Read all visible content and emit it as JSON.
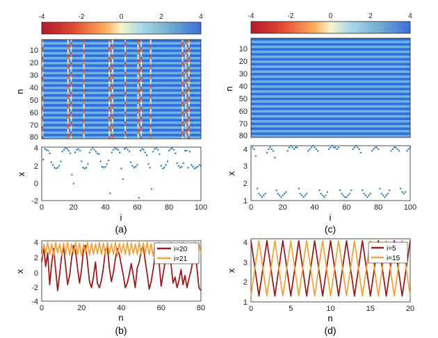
{
  "figure": {
    "colorbar_ticks": [
      "-4",
      "-2",
      "0",
      "2",
      "4"
    ],
    "colorbar_range": [
      -4,
      4
    ],
    "colors": {
      "dark_red": "#9b1b1b",
      "orange": "#f2a33a",
      "dots": "#1f77b4",
      "axis": "#222222"
    },
    "panels": [
      {
        "id": "a",
        "label": "(a)"
      },
      {
        "id": "b",
        "label": "(b)"
      },
      {
        "id": "c",
        "label": "(c)"
      },
      {
        "id": "d",
        "label": "(d)"
      }
    ]
  },
  "chart_data": [
    {
      "panel": "a-heatmap",
      "type": "heatmap",
      "xlabel": "",
      "ylabel": "n",
      "ylim": [
        1,
        80
      ],
      "xlim": [
        1,
        100
      ],
      "yticks": [
        "10",
        "20",
        "30",
        "40",
        "50",
        "60",
        "70",
        "80"
      ],
      "description_values": "alternating rows ~ +3.8 / +1.8 with intermittent columns dipping to negative values",
      "special_columns": [
        1,
        17,
        19,
        27,
        43,
        45,
        53,
        61,
        63,
        69,
        89,
        91,
        93
      ]
    },
    {
      "panel": "a-scatter",
      "type": "scatter",
      "xlabel": "i",
      "ylabel": "x",
      "xlim": [
        0,
        100
      ],
      "ylim": [
        -2,
        4
      ],
      "xticks": [
        "0",
        "20",
        "40",
        "60",
        "80",
        "100"
      ],
      "yticks": [
        "-2",
        "0",
        "2",
        "4"
      ],
      "x": [
        1,
        2,
        3,
        4,
        5,
        6,
        7,
        8,
        9,
        10,
        11,
        12,
        13,
        14,
        15,
        16,
        17,
        18,
        19,
        20,
        21,
        22,
        23,
        24,
        25,
        26,
        27,
        28,
        29,
        30,
        31,
        32,
        33,
        34,
        35,
        36,
        37,
        38,
        39,
        40,
        41,
        42,
        43,
        44,
        45,
        46,
        47,
        48,
        49,
        50,
        51,
        52,
        53,
        54,
        55,
        56,
        57,
        58,
        59,
        60,
        61,
        62,
        63,
        64,
        65,
        66,
        67,
        68,
        69,
        70,
        71,
        72,
        73,
        74,
        75,
        76,
        77,
        78,
        79,
        80,
        81,
        82,
        83,
        84,
        85,
        86,
        87,
        88,
        89,
        90,
        91,
        92,
        93,
        94,
        95,
        96,
        97,
        98,
        99,
        100
      ],
      "y": [
        2.6,
        3.8,
        3.7,
        3.6,
        3.3,
        2.3,
        2.0,
        1.7,
        1.6,
        1.7,
        1.9,
        2.4,
        3.5,
        3.7,
        3.9,
        3.8,
        3.6,
        3.3,
        0.9,
        -0.1,
        3.4,
        3.7,
        3.8,
        3.6,
        2.4,
        1.7,
        1.6,
        1.7,
        2.1,
        3.4,
        3.7,
        3.9,
        3.7,
        3.5,
        3.3,
        3.2,
        2.4,
        1.8,
        1.7,
        1.8,
        2.1,
        2.5,
        -1.2,
        3.4,
        3.7,
        3.9,
        3.8,
        3.7,
        3.4,
        1.6,
        0.4,
        3.8,
        3.9,
        3.7,
        3.5,
        2.3,
        1.9,
        1.7,
        1.8,
        2.0,
        -1.7,
        3.6,
        3.8,
        3.7,
        3.4,
        3.1,
        2.1,
        1.7,
        -0.7,
        3.5,
        3.8,
        3.9,
        3.7,
        3.2,
        1.9,
        1.6,
        1.7,
        2.0,
        2.4,
        3.6,
        3.8,
        3.9,
        3.7,
        3.3,
        2.2,
        1.9,
        1.7,
        1.8,
        2.2,
        3.6,
        3.6,
        1.7,
        3.5,
        2.0,
        1.8,
        1.6,
        1.7,
        1.8,
        2.0,
        1.9
      ]
    },
    {
      "panel": "b",
      "type": "line",
      "xlabel": "n",
      "ylabel": "x",
      "xlim": [
        0,
        80
      ],
      "ylim": [
        -4,
        4
      ],
      "xticks": [
        "0",
        "20",
        "40",
        "60",
        "80"
      ],
      "yticks": [
        "-4",
        "-2",
        "0",
        "2",
        "4"
      ],
      "legend_position": "top-right",
      "series": [
        {
          "name": "i=20",
          "color": "#9b1b1b",
          "values": [
            1.2,
            3.2,
            0.6,
            2.4,
            -1.8,
            1.0,
            3.0,
            0.2,
            -2.6,
            -0.4,
            2.0,
            3.2,
            0.8,
            -1.8,
            -0.6,
            1.6,
            3.4,
            2.6,
            0.4,
            -1.6,
            0.2,
            2.8,
            3.4,
            1.2,
            -1.4,
            -2.2,
            -0.8,
            1.2,
            -1.6,
            -2.2,
            -1.2,
            0.4,
            2.8,
            3.2,
            0.4,
            -1.4,
            -0.2,
            1.6,
            3.0,
            2.2,
            0.8,
            -0.6,
            -2.2,
            -1.6,
            -0.4,
            1.0,
            -0.6,
            -2.2,
            0.4,
            1.2,
            2.8,
            3.4,
            1.4,
            -0.4,
            -2.4,
            -1.4,
            0.2,
            2.2,
            3.4,
            1.0,
            -2.0,
            -0.4,
            1.2,
            2.8,
            3.2,
            0.8,
            -1.6,
            -0.8,
            -2.2,
            -1.2,
            0.2,
            -1.8,
            -0.6,
            -2.2,
            -1.0,
            0.0,
            1.4,
            3.0,
            0.4,
            -2.2,
            -2.6
          ]
        },
        {
          "name": "i=21",
          "color": "#f2a33a",
          "values": [
            1.8,
            3.6,
            2.4,
            3.8,
            2.2,
            3.6,
            2.0,
            3.8,
            2.4,
            3.6,
            2.1,
            3.7,
            2.3,
            3.8,
            2.1,
            3.6,
            2.3,
            3.8,
            2.2,
            3.7,
            2.0,
            3.6,
            2.4,
            3.8,
            2.1,
            3.7,
            2.2,
            3.6,
            2.3,
            3.8,
            2.2,
            3.7,
            2.1,
            3.8,
            2.3,
            3.6,
            2.2,
            3.8,
            2.0,
            3.7,
            2.4,
            3.6,
            2.2,
            3.8,
            2.1,
            3.7,
            2.3,
            3.6,
            2.2,
            3.8,
            2.1,
            3.7,
            2.3,
            3.8,
            2.2,
            3.6,
            2.0,
            3.7,
            2.4,
            3.8,
            2.1,
            3.6,
            2.3,
            3.7,
            2.2,
            3.8,
            2.1,
            3.6,
            2.3,
            3.7,
            2.2,
            3.8,
            2.0,
            3.6,
            2.4,
            3.7,
            2.1,
            3.8,
            2.2,
            3.6,
            2.4
          ]
        }
      ]
    },
    {
      "panel": "c-heatmap",
      "type": "heatmap",
      "xlabel": "",
      "ylabel": "n",
      "ylim": [
        1,
        80
      ],
      "xlim": [
        1,
        100
      ],
      "yticks": [
        "10",
        "20",
        "30",
        "40",
        "50",
        "60",
        "70",
        "80"
      ],
      "description_values": "regular alternating rows ~ +4.2 / +1.2, nearly uniform along i"
    },
    {
      "panel": "c-scatter",
      "type": "scatter",
      "xlabel": "i",
      "ylabel": "x",
      "xlim": [
        0,
        100
      ],
      "ylim": [
        1,
        4.2
      ],
      "xticks": [
        "0",
        "20",
        "40",
        "60",
        "80",
        "100"
      ],
      "yticks": [
        "1",
        "2",
        "3",
        "4"
      ],
      "x": [
        1,
        2,
        3,
        4,
        5,
        6,
        7,
        8,
        9,
        10,
        11,
        12,
        13,
        14,
        15,
        16,
        17,
        18,
        19,
        20,
        21,
        22,
        23,
        24,
        25,
        26,
        27,
        28,
        29,
        30,
        31,
        32,
        33,
        34,
        35,
        36,
        37,
        38,
        39,
        40,
        41,
        42,
        43,
        44,
        45,
        46,
        47,
        48,
        49,
        50,
        51,
        52,
        53,
        54,
        55,
        56,
        57,
        58,
        59,
        60,
        61,
        62,
        63,
        64,
        65,
        66,
        67,
        68,
        69,
        70,
        71,
        72,
        73,
        74,
        75,
        76,
        77,
        78,
        79,
        80,
        81,
        82,
        83,
        84,
        85,
        86,
        87,
        88,
        89,
        90,
        91,
        92,
        93,
        94,
        95,
        96,
        97,
        98,
        99,
        100
      ],
      "y": [
        4.1,
        4.0,
        3.6,
        1.7,
        1.4,
        1.3,
        1.2,
        1.3,
        1.4,
        3.8,
        4.0,
        4.1,
        4.0,
        3.9,
        3.5,
        1.6,
        1.4,
        1.3,
        1.2,
        1.3,
        1.4,
        1.5,
        3.9,
        4.1,
        4.2,
        4.1,
        4.0,
        4.1,
        4.1,
        1.7,
        1.4,
        1.3,
        1.2,
        1.3,
        1.4,
        3.9,
        4.0,
        4.1,
        4.2,
        4.1,
        4.0,
        3.9,
        1.6,
        1.4,
        1.3,
        1.2,
        1.3,
        1.5,
        4.0,
        4.1,
        4.2,
        4.1,
        4.1,
        4.0,
        4.1,
        1.6,
        1.4,
        1.3,
        1.2,
        1.2,
        1.3,
        1.4,
        1.6,
        4.0,
        4.1,
        4.2,
        4.1,
        4.0,
        3.8,
        1.6,
        1.4,
        1.3,
        1.2,
        1.3,
        1.4,
        3.9,
        4.0,
        4.1,
        4.1,
        4.0,
        1.7,
        1.4,
        1.3,
        1.2,
        1.3,
        1.4,
        1.6,
        3.9,
        4.0,
        4.1,
        4.1,
        4.0,
        3.9,
        1.7,
        1.5,
        1.4,
        1.5,
        3.9,
        4.0,
        4.1
      ]
    },
    {
      "panel": "d",
      "type": "line",
      "xlabel": "n",
      "ylabel": "x",
      "xlim": [
        0,
        20
      ],
      "ylim": [
        1,
        4.2
      ],
      "xticks": [
        "0",
        "5",
        "10",
        "15",
        "20"
      ],
      "yticks": [
        "1",
        "2",
        "3",
        "4"
      ],
      "legend_position": "top-right",
      "series": [
        {
          "name": "i=5",
          "color": "#9b1b1b",
          "x": [
            0,
            1,
            2,
            3,
            4,
            5,
            6,
            7,
            8,
            9,
            10,
            11,
            12,
            13,
            14,
            15,
            16,
            17,
            18,
            19,
            20
          ],
          "values": [
            4.1,
            1.3,
            4.1,
            1.3,
            4.1,
            1.3,
            4.1,
            1.3,
            4.1,
            1.3,
            4.1,
            1.3,
            4.1,
            1.3,
            4.1,
            1.3,
            4.1,
            1.3,
            4.1,
            1.3,
            4.1
          ]
        },
        {
          "name": "i=15",
          "color": "#f2a33a",
          "x": [
            0,
            1,
            2,
            3,
            4,
            5,
            6,
            7,
            8,
            9,
            10,
            11,
            12,
            13,
            14,
            15,
            16,
            17,
            18,
            19,
            20
          ],
          "values": [
            1.3,
            4.1,
            1.3,
            4.1,
            1.3,
            4.1,
            1.3,
            4.1,
            1.3,
            4.1,
            1.3,
            4.1,
            1.3,
            4.1,
            1.3,
            4.1,
            1.3,
            4.1,
            1.3,
            4.1,
            1.3
          ]
        }
      ]
    }
  ]
}
